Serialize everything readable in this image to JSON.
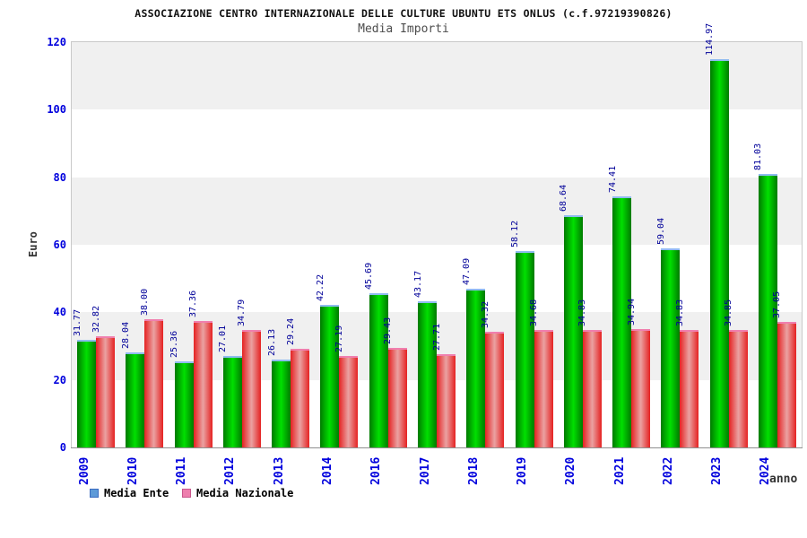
{
  "header": {
    "title": "ASSOCIAZIONE CENTRO INTERNAZIONALE DELLE CULTURE UBUNTU ETS ONLUS (c.f.97219390826)",
    "subtitle": "Media Importi"
  },
  "chart_data": {
    "type": "bar",
    "title": "Media Importi",
    "xlabel": "anno",
    "ylabel": "Euro",
    "ylim": [
      0,
      120
    ],
    "ytick_step": 20,
    "grid_bands": true,
    "band_colors": [
      "#ffffff",
      "#f0f0f0"
    ],
    "legend_position": "bottom-left",
    "tick_label_color": "#0000dd",
    "value_label_color": "#000099",
    "categories": [
      "2009",
      "2010",
      "2011",
      "2012",
      "2013",
      "2014",
      "2016",
      "2017",
      "2018",
      "2019",
      "2020",
      "2021",
      "2022",
      "2023",
      "2024"
    ],
    "series": [
      {
        "name": "Media Ente",
        "values": [
          31.77,
          28.04,
          25.36,
          27.01,
          26.13,
          42.22,
          45.69,
          43.17,
          47.09,
          58.12,
          68.64,
          74.41,
          59.04,
          114.97,
          81.03
        ],
        "bar_edge_color": "#007a00",
        "bar_center_color": "#00e000",
        "bar_cap_color": "#8fbbf0",
        "legend_fill": "#5d9ad8",
        "legend_border": "#3a6cc0"
      },
      {
        "name": "Media Nazionale",
        "values": [
          32.82,
          38.0,
          37.36,
          34.79,
          29.24,
          27.19,
          29.43,
          27.71,
          34.32,
          34.68,
          34.83,
          34.94,
          34.83,
          34.85,
          37.05
        ],
        "bar_edge_color": "#e52222",
        "bar_center_color": "#eaa2a2",
        "bar_cap_color": "#f07fae",
        "legend_fill": "#ee7fae",
        "legend_border": "#c8568c"
      }
    ]
  }
}
